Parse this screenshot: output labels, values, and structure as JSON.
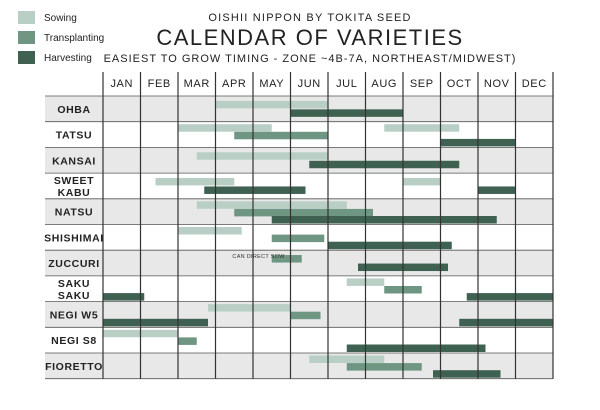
{
  "legend": [
    {
      "key": "sowing",
      "label": "Sowing",
      "color": "#b9cfc6"
    },
    {
      "key": "transplanting",
      "label": "Transplanting",
      "color": "#6f9682"
    },
    {
      "key": "harvesting",
      "label": "Harvesting",
      "color": "#3f6152"
    }
  ],
  "header": {
    "brand": "OISHII NIPPON BY TOKITA SEED",
    "title": "CALENDAR OF VARIETIES",
    "subtitle": "EASIEST TO GROW TIMING - ZONE ~4B-7A, NORTHEAST/MIDWEST)"
  },
  "chart_data": {
    "type": "gantt",
    "months": [
      "JAN",
      "FEB",
      "MAR",
      "APR",
      "MAY",
      "JUN",
      "JUL",
      "AUG",
      "SEP",
      "OCT",
      "NOV",
      "DEC"
    ],
    "month_start_unit": "month index (0 = start of JAN, 12 = end of DEC)",
    "rows": [
      {
        "label": [
          "OHBA"
        ],
        "bars": [
          {
            "type": "sowing",
            "start": 3.0,
            "end": 6.0
          },
          {
            "type": "harvesting",
            "start": 5.0,
            "end": 8.0
          }
        ]
      },
      {
        "label": [
          "TATSU"
        ],
        "bars": [
          {
            "type": "sowing",
            "start": 2.0,
            "end": 4.5
          },
          {
            "type": "transplanting",
            "start": 3.5,
            "end": 6.0
          },
          {
            "type": "sowing",
            "start": 7.5,
            "end": 9.5
          },
          {
            "type": "harvesting",
            "start": 9.0,
            "end": 11.0
          }
        ]
      },
      {
        "label": [
          "KANSAI"
        ],
        "bars": [
          {
            "type": "sowing",
            "start": 2.5,
            "end": 6.0
          },
          {
            "type": "harvesting",
            "start": 5.5,
            "end": 9.5
          }
        ]
      },
      {
        "label": [
          "SWEET",
          "KABU"
        ],
        "bars": [
          {
            "type": "sowing",
            "start": 1.4,
            "end": 3.5
          },
          {
            "type": "sowing",
            "start": 8.0,
            "end": 9.0
          },
          {
            "type": "harvesting",
            "start": 2.7,
            "end": 5.4
          },
          {
            "type": "harvesting",
            "start": 10.0,
            "end": 11.0
          }
        ]
      },
      {
        "label": [
          "NATSU"
        ],
        "bars": [
          {
            "type": "sowing",
            "start": 2.5,
            "end": 6.5
          },
          {
            "type": "transplanting",
            "start": 3.5,
            "end": 7.2
          },
          {
            "type": "harvesting",
            "start": 4.5,
            "end": 10.5
          }
        ]
      },
      {
        "label": [
          "SHISHIMAI"
        ],
        "bars": [
          {
            "type": "sowing",
            "start": 2.0,
            "end": 3.7
          },
          {
            "type": "transplanting",
            "start": 4.5,
            "end": 5.9
          },
          {
            "type": "harvesting",
            "start": 6.0,
            "end": 9.3
          }
        ]
      },
      {
        "label": [
          "ZUCCURI"
        ],
        "bars": [
          {
            "type": "transplanting",
            "start": 4.5,
            "end": 5.3
          },
          {
            "type": "harvesting",
            "start": 6.8,
            "end": 9.2
          }
        ]
      },
      {
        "label": [
          "SAKU",
          "SAKU"
        ],
        "bars": [
          {
            "type": "sowing",
            "start": 6.5,
            "end": 7.5
          },
          {
            "type": "transplanting",
            "start": 7.5,
            "end": 8.5
          },
          {
            "type": "harvesting",
            "start": 0.0,
            "end": 1.1
          },
          {
            "type": "harvesting",
            "start": 9.7,
            "end": 12.0
          }
        ]
      },
      {
        "label": [
          "NEGI W5"
        ],
        "bars": [
          {
            "type": "sowing",
            "start": 2.8,
            "end": 5.0
          },
          {
            "type": "transplanting",
            "start": 5.0,
            "end": 5.8
          },
          {
            "type": "harvesting",
            "start": 0.0,
            "end": 2.8
          },
          {
            "type": "harvesting",
            "start": 9.5,
            "end": 12.0
          }
        ]
      },
      {
        "label": [
          "NEGI S8"
        ],
        "bars": [
          {
            "type": "sowing",
            "start": 0.0,
            "end": 2.0
          },
          {
            "type": "transplanting",
            "start": 2.0,
            "end": 2.5
          },
          {
            "type": "harvesting",
            "start": 6.5,
            "end": 10.2
          }
        ]
      },
      {
        "label": [
          "FIORETTO"
        ],
        "bars": [
          {
            "type": "sowing",
            "start": 5.5,
            "end": 7.5
          },
          {
            "type": "transplanting",
            "start": 6.5,
            "end": 8.5
          },
          {
            "type": "harvesting",
            "start": 8.8,
            "end": 10.6
          }
        ]
      }
    ],
    "annotations": [
      {
        "text": "CAN DIRECT SOW",
        "row": 6,
        "start": 3.3,
        "end": 5.0
      }
    ]
  }
}
